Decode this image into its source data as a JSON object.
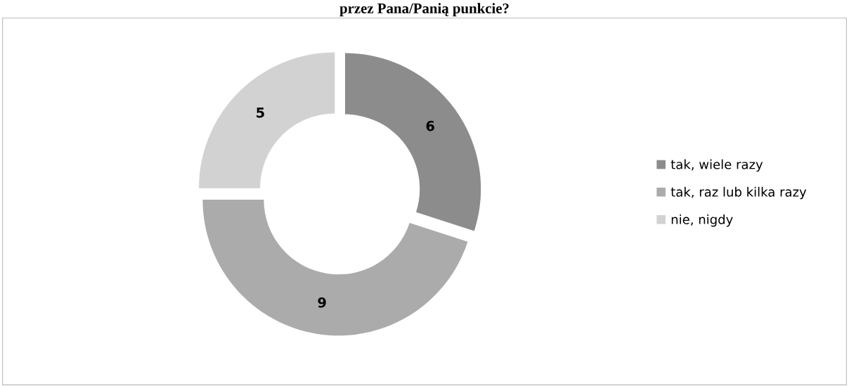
{
  "chart_data": {
    "type": "donut",
    "title": "przez Pana/Panią punkcie?",
    "categories": [
      "tak, wiele razy",
      "tak, raz lub kilka razy",
      "nie, nigdy"
    ],
    "values": [
      6,
      9,
      5
    ],
    "colors": [
      "#8c8c8c",
      "#ababab",
      "#d2d2d2"
    ],
    "data_labels": true,
    "legend": "right"
  }
}
